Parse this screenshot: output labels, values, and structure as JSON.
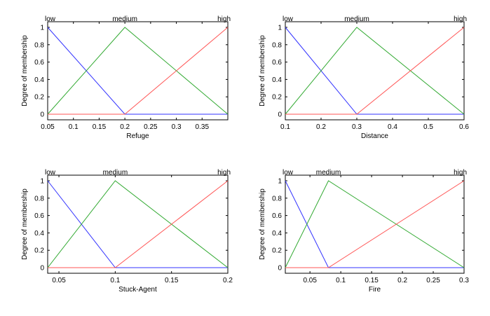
{
  "colors": {
    "low": "#3333ff",
    "medium": "#33aa33",
    "high": "#ff5555",
    "axis": "#000000"
  },
  "chart_data": [
    {
      "type": "line",
      "xlabel": "Refuge",
      "ylabel": "Degree of membership",
      "xlim": [
        0.05,
        0.4
      ],
      "ylim": [
        0,
        1
      ],
      "xticks": [
        "0.05",
        "0.1",
        "0.15",
        "0.2",
        "0.25",
        "0.3",
        "0.35"
      ],
      "xtick_values": [
        0.05,
        0.1,
        0.15,
        0.2,
        0.25,
        0.3,
        0.35
      ],
      "yticks": [
        "0",
        "0.2",
        "0.4",
        "0.6",
        "0.8",
        "1"
      ],
      "ytick_values": [
        0,
        0.2,
        0.4,
        0.6,
        0.8,
        1
      ],
      "series": [
        {
          "name": "low",
          "x": [
            0.05,
            0.2,
            0.4
          ],
          "y": [
            1,
            0,
            0
          ]
        },
        {
          "name": "medium",
          "x": [
            0.05,
            0.2,
            0.4
          ],
          "y": [
            0,
            1,
            0
          ]
        },
        {
          "name": "high",
          "x": [
            0.05,
            0.2,
            0.4
          ],
          "y": [
            0,
            0,
            1
          ]
        }
      ]
    },
    {
      "type": "line",
      "xlabel": "Distance",
      "ylabel": "Degree of membership",
      "xlim": [
        0.1,
        0.6
      ],
      "ylim": [
        0,
        1
      ],
      "xticks": [
        "0.1",
        "0.2",
        "0.3",
        "0.4",
        "0.5",
        "0.6"
      ],
      "xtick_values": [
        0.1,
        0.2,
        0.3,
        0.4,
        0.5,
        0.6
      ],
      "yticks": [
        "0",
        "0.2",
        "0.4",
        "0.6",
        "0.8",
        "1"
      ],
      "ytick_values": [
        0,
        0.2,
        0.4,
        0.6,
        0.8,
        1
      ],
      "series": [
        {
          "name": "low",
          "x": [
            0.1,
            0.3,
            0.6
          ],
          "y": [
            1,
            0,
            0
          ]
        },
        {
          "name": "medium",
          "x": [
            0.1,
            0.3,
            0.6
          ],
          "y": [
            0,
            1,
            0
          ]
        },
        {
          "name": "high",
          "x": [
            0.1,
            0.3,
            0.6
          ],
          "y": [
            0,
            0,
            1
          ]
        }
      ]
    },
    {
      "type": "line",
      "xlabel": "Stuck-Agent",
      "ylabel": "Degree of membership",
      "xlim": [
        0.04,
        0.2
      ],
      "ylim": [
        0,
        1
      ],
      "xticks": [
        "0.05",
        "0.1",
        "0.15",
        "0.2"
      ],
      "xtick_values": [
        0.05,
        0.1,
        0.15,
        0.2
      ],
      "yticks": [
        "0",
        "0.2",
        "0.4",
        "0.6",
        "0.8",
        "1"
      ],
      "ytick_values": [
        0,
        0.2,
        0.4,
        0.6,
        0.8,
        1
      ],
      "series": [
        {
          "name": "low",
          "x": [
            0.04,
            0.1,
            0.2
          ],
          "y": [
            1,
            0,
            0
          ]
        },
        {
          "name": "medium",
          "x": [
            0.04,
            0.1,
            0.2
          ],
          "y": [
            0,
            1,
            0
          ]
        },
        {
          "name": "high",
          "x": [
            0.04,
            0.1,
            0.2
          ],
          "y": [
            0,
            0,
            1
          ]
        }
      ]
    },
    {
      "type": "line",
      "xlabel": "Fire",
      "ylabel": "Degree of membership",
      "xlim": [
        0.01,
        0.3
      ],
      "ylim": [
        0,
        1
      ],
      "xticks": [
        "0.05",
        "0.1",
        "0.15",
        "0.2",
        "0.25",
        "0.3"
      ],
      "xtick_values": [
        0.05,
        0.1,
        0.15,
        0.2,
        0.25,
        0.3
      ],
      "yticks": [
        "0",
        "0.2",
        "0.4",
        "0.6",
        "0.8",
        "1"
      ],
      "ytick_values": [
        0,
        0.2,
        0.4,
        0.6,
        0.8,
        1
      ],
      "series": [
        {
          "name": "low",
          "x": [
            0.01,
            0.08,
            0.3
          ],
          "y": [
            1,
            0,
            0
          ]
        },
        {
          "name": "medium",
          "x": [
            0.01,
            0.08,
            0.3
          ],
          "y": [
            0,
            1,
            0
          ]
        },
        {
          "name": "high",
          "x": [
            0.01,
            0.08,
            0.3
          ],
          "y": [
            0,
            0,
            1
          ]
        }
      ]
    }
  ]
}
